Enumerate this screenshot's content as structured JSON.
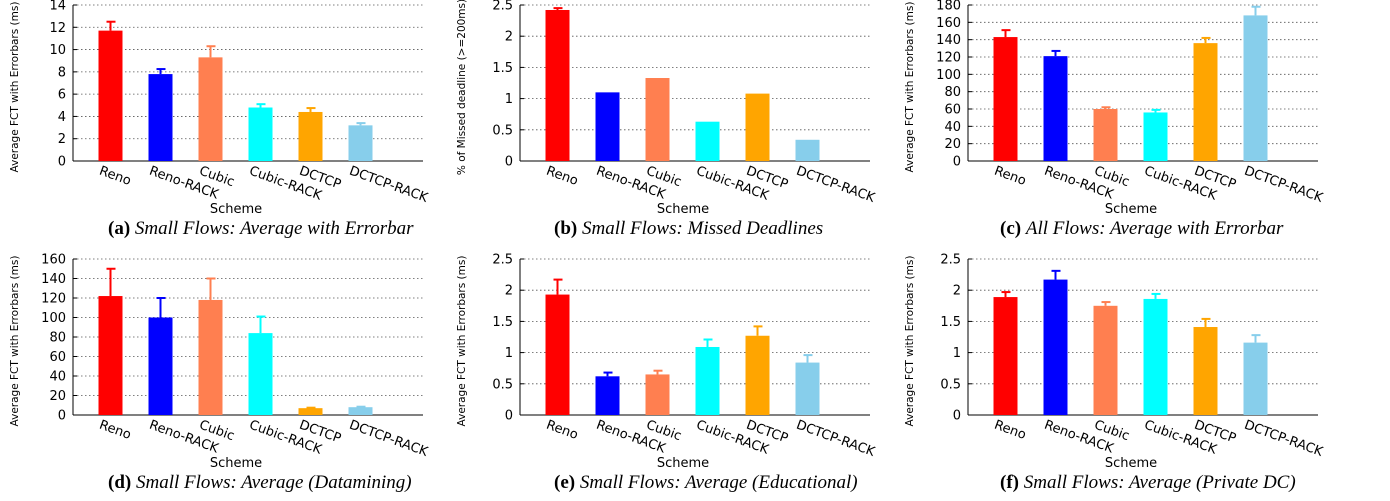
{
  "figure": {
    "series_colors": [
      "#ff0000",
      "#0000ff",
      "#ff7f50",
      "#00ffff",
      "#ffa500",
      "#87ceeb"
    ]
  },
  "chart_data": [
    {
      "type": "bar",
      "panel_label": "(a)",
      "caption": "Small Flows: Average with Errorbar",
      "ylabel": "Average FCT with Errorbars (ms)",
      "xlabel": "Scheme",
      "categories": [
        "Reno",
        "Reno-RACK",
        "Cubic",
        "Cubic-RACK",
        "DCTCP",
        "DCTCP-RACK"
      ],
      "values": [
        11.7,
        7.8,
        9.3,
        4.8,
        4.4,
        3.2
      ],
      "errors": [
        0.8,
        0.45,
        1.0,
        0.3,
        0.35,
        0.2
      ],
      "ylim": [
        0,
        14
      ],
      "yticks": [
        "0",
        "2",
        "4",
        "6",
        "8",
        "10",
        "12",
        "14"
      ],
      "grid": true
    },
    {
      "type": "bar",
      "panel_label": "(b)",
      "caption": "Small Flows: Missed Deadlines",
      "ylabel": "% of Missed deadline (>=200ms)",
      "xlabel": "Scheme",
      "categories": [
        "Reno",
        "Reno-RACK",
        "Cubic",
        "Cubic-RACK",
        "DCTCP",
        "DCTCP-RACK"
      ],
      "values": [
        2.42,
        1.1,
        1.33,
        0.63,
        1.08,
        0.34
      ],
      "errors": [
        0.03,
        0,
        0,
        0,
        0,
        0
      ],
      "ylim": [
        0,
        2.5
      ],
      "yticks": [
        "0",
        "0.5",
        "1",
        "1.5",
        "2",
        "2.5"
      ],
      "grid": true
    },
    {
      "type": "bar",
      "panel_label": "(c)",
      "caption": "All Flows: Average with Errorbar",
      "ylabel": "Average FCT with Errorbars (ms)",
      "xlabel": "Scheme",
      "categories": [
        "Reno",
        "Reno-RACK",
        "Cubic",
        "Cubic-RACK",
        "DCTCP",
        "DCTCP-RACK"
      ],
      "values": [
        143,
        121,
        60,
        56,
        136,
        168
      ],
      "errors": [
        8,
        6,
        2,
        3,
        6,
        10
      ],
      "ylim": [
        0,
        180
      ],
      "yticks": [
        "0",
        "20",
        "40",
        "60",
        "80",
        "100",
        "120",
        "140",
        "160",
        "180"
      ],
      "grid": true
    },
    {
      "type": "bar",
      "panel_label": "(d)",
      "caption": "Small Flows: Average (Datamining)",
      "ylabel": "Average FCT with Errorbars (ms)",
      "xlabel": "Scheme",
      "categories": [
        "Reno",
        "Reno-RACK",
        "Cubic",
        "Cubic-RACK",
        "DCTCP",
        "DCTCP-RACK"
      ],
      "values": [
        122,
        100,
        118,
        84,
        7,
        8
      ],
      "errors": [
        28,
        20,
        22,
        17,
        0.5,
        0.5
      ],
      "ylim": [
        0,
        160
      ],
      "yticks": [
        "0",
        "20",
        "40",
        "60",
        "80",
        "100",
        "120",
        "140",
        "160"
      ],
      "grid": true
    },
    {
      "type": "bar",
      "panel_label": "(e)",
      "caption": "Small Flows: Average (Educational)",
      "ylabel": "Average FCT with Errorbars (ms)",
      "xlabel": "Scheme",
      "categories": [
        "Reno",
        "Reno-RACK",
        "Cubic",
        "Cubic-RACK",
        "DCTCP",
        "DCTCP-RACK"
      ],
      "values": [
        1.93,
        0.62,
        0.65,
        1.09,
        1.27,
        0.84
      ],
      "errors": [
        0.24,
        0.06,
        0.06,
        0.12,
        0.15,
        0.12
      ],
      "ylim": [
        0,
        2.5
      ],
      "yticks": [
        "0",
        "0.5",
        "1",
        "1.5",
        "2",
        "2.5"
      ],
      "grid": true
    },
    {
      "type": "bar",
      "panel_label": "(f)",
      "caption": "Small Flows: Average (Private DC)",
      "ylabel": "Average FCT with Errorbars (ms)",
      "xlabel": "Scheme",
      "categories": [
        "Reno",
        "Reno-RACK",
        "Cubic",
        "Cubic-RACK",
        "DCTCP",
        "DCTCP-RACK"
      ],
      "values": [
        1.89,
        2.17,
        1.75,
        1.86,
        1.41,
        1.16
      ],
      "errors": [
        0.08,
        0.14,
        0.06,
        0.08,
        0.13,
        0.12
      ],
      "ylim": [
        0,
        2.5
      ],
      "yticks": [
        "0",
        "0.5",
        "1",
        "1.5",
        "2",
        "2.5"
      ],
      "grid": true
    }
  ]
}
